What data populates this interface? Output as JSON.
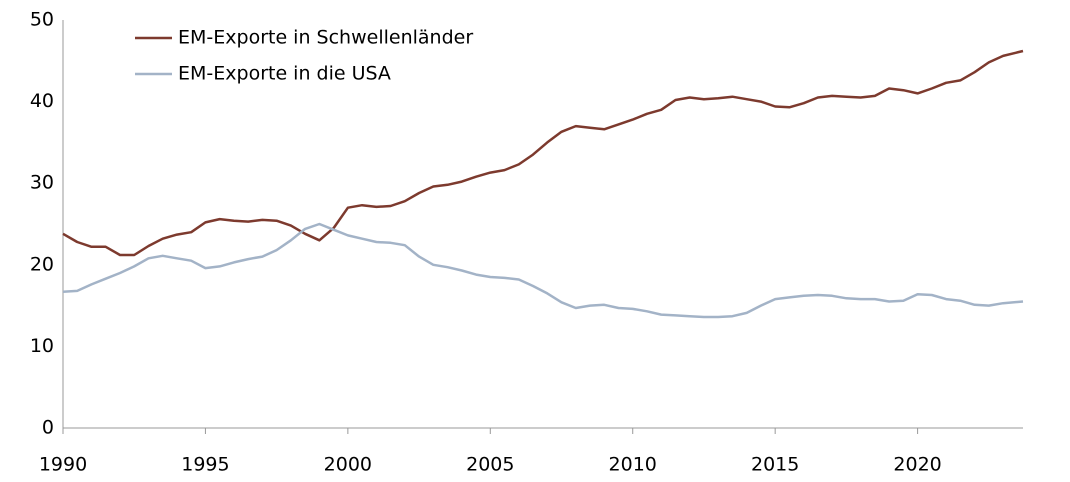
{
  "chart_data": {
    "type": "line",
    "x": [
      1990,
      1990.5,
      1991,
      1991.5,
      1992,
      1992.5,
      1993,
      1993.5,
      1994,
      1994.5,
      1995,
      1995.5,
      1996,
      1996.5,
      1997,
      1997.5,
      1998,
      1998.5,
      1999,
      1999.5,
      2000,
      2000.5,
      2001,
      2001.5,
      2002,
      2002.5,
      2003,
      2003.5,
      2004,
      2004.5,
      2005,
      2005.5,
      2006,
      2006.5,
      2007,
      2007.5,
      2008,
      2008.5,
      2009,
      2009.5,
      2010,
      2010.5,
      2011,
      2011.5,
      2012,
      2012.5,
      2013,
      2013.5,
      2014,
      2014.5,
      2015,
      2015.5,
      2016,
      2016.5,
      2017,
      2017.5,
      2018,
      2018.5,
      2019,
      2019.5,
      2020,
      2020.5,
      2021,
      2021.5,
      2022,
      2022.5,
      2023,
      2023.7
    ],
    "series": [
      {
        "name": "EM-Exporte in Schwellenländer",
        "color": "#7d3a2e",
        "values": [
          23.8,
          22.8,
          22.2,
          22.2,
          21.2,
          21.2,
          22.3,
          23.2,
          23.7,
          24.0,
          25.2,
          25.6,
          25.4,
          25.3,
          25.5,
          25.4,
          24.8,
          23.8,
          23.0,
          24.5,
          27.0,
          27.3,
          27.1,
          27.2,
          27.8,
          28.8,
          29.6,
          29.8,
          30.2,
          30.8,
          31.3,
          31.6,
          32.3,
          33.5,
          35.0,
          36.3,
          37.0,
          36.8,
          36.6,
          37.2,
          37.8,
          38.5,
          39.0,
          40.2,
          40.5,
          40.3,
          40.4,
          40.6,
          40.3,
          40.0,
          39.4,
          39.3,
          39.8,
          40.5,
          40.7,
          40.6,
          40.5,
          40.7,
          41.6,
          41.4,
          41.0,
          41.6,
          42.3,
          42.6,
          43.6,
          44.8,
          45.6,
          46.2
        ]
      },
      {
        "name": "EM-Exporte in die USA",
        "color": "#a3b3c7",
        "values": [
          16.7,
          16.8,
          17.6,
          18.3,
          19.0,
          19.8,
          20.8,
          21.1,
          20.8,
          20.5,
          19.6,
          19.8,
          20.3,
          20.7,
          21.0,
          21.8,
          23.0,
          24.4,
          25.0,
          24.3,
          23.6,
          23.2,
          22.8,
          22.7,
          22.4,
          21.0,
          20.0,
          19.7,
          19.3,
          18.8,
          18.5,
          18.4,
          18.2,
          17.4,
          16.5,
          15.4,
          14.7,
          15.0,
          15.1,
          14.7,
          14.6,
          14.3,
          13.9,
          13.8,
          13.7,
          13.6,
          13.6,
          13.7,
          14.1,
          15.0,
          15.8,
          16.0,
          16.2,
          16.3,
          16.2,
          15.9,
          15.8,
          15.8,
          15.5,
          15.6,
          16.4,
          16.3,
          15.8,
          15.6,
          15.1,
          15.0,
          15.3,
          15.5
        ]
      }
    ],
    "xlim": [
      1990,
      2023.7
    ],
    "xticks": [
      1990,
      1995,
      2000,
      2005,
      2010,
      2015,
      2020
    ],
    "ylim": [
      0,
      50
    ],
    "yticks": [
      0,
      10,
      20,
      30,
      40,
      50
    ],
    "grid": false,
    "legend": "upper left"
  }
}
